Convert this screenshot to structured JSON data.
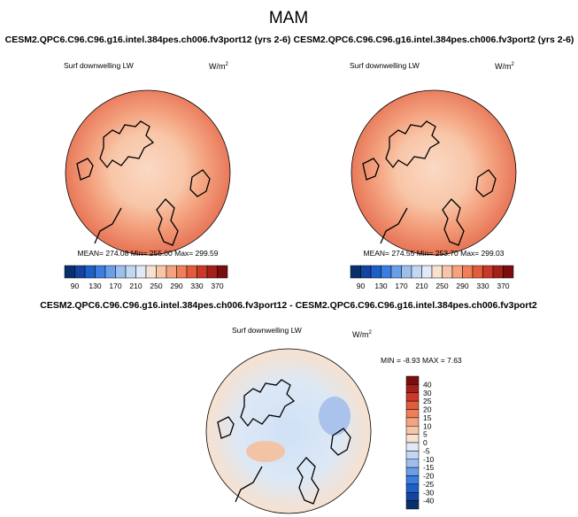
{
  "title": "MAM",
  "panels": [
    {
      "case": "CESM2.QPC6.C96.C96.g16.intel.384pes.ch006.fv3port12 (yrs 2-6)",
      "variable": "Surf downwelling LW",
      "units": "W/m",
      "units_exponent": "2",
      "stats": "MEAN= 274.08  Min= 255.00  Max= 299.59",
      "colorbar_labels": [
        90,
        130,
        170,
        210,
        250,
        290,
        330,
        370
      ]
    },
    {
      "case": "CESM2.QPC6.C96.C96.g16.intel.384pes.ch006.fv3port2 (yrs 2-6)",
      "variable": "Surf downwelling LW",
      "units": "W/m",
      "units_exponent": "2",
      "stats": "MEAN= 274.55  Min= 253.70  Max= 299.03",
      "colorbar_labels": [
        90,
        130,
        170,
        210,
        250,
        290,
        330,
        370
      ]
    }
  ],
  "difference": {
    "title": "CESM2.QPC6.C96.C96.g16.intel.384pes.ch006.fv3port12 - CESM2.QPC6.C96.C96.g16.intel.384pes.ch006.fv3port2",
    "variable": "Surf downwelling LW",
    "units": "W/m",
    "units_exponent": "2",
    "stats": "MIN = -8.93 MAX =  7.63",
    "colorbar_labels": [
      40,
      30,
      25,
      20,
      15,
      10,
      5,
      0,
      -5,
      -10,
      -15,
      -20,
      -25,
      -30,
      -40
    ]
  }
}
